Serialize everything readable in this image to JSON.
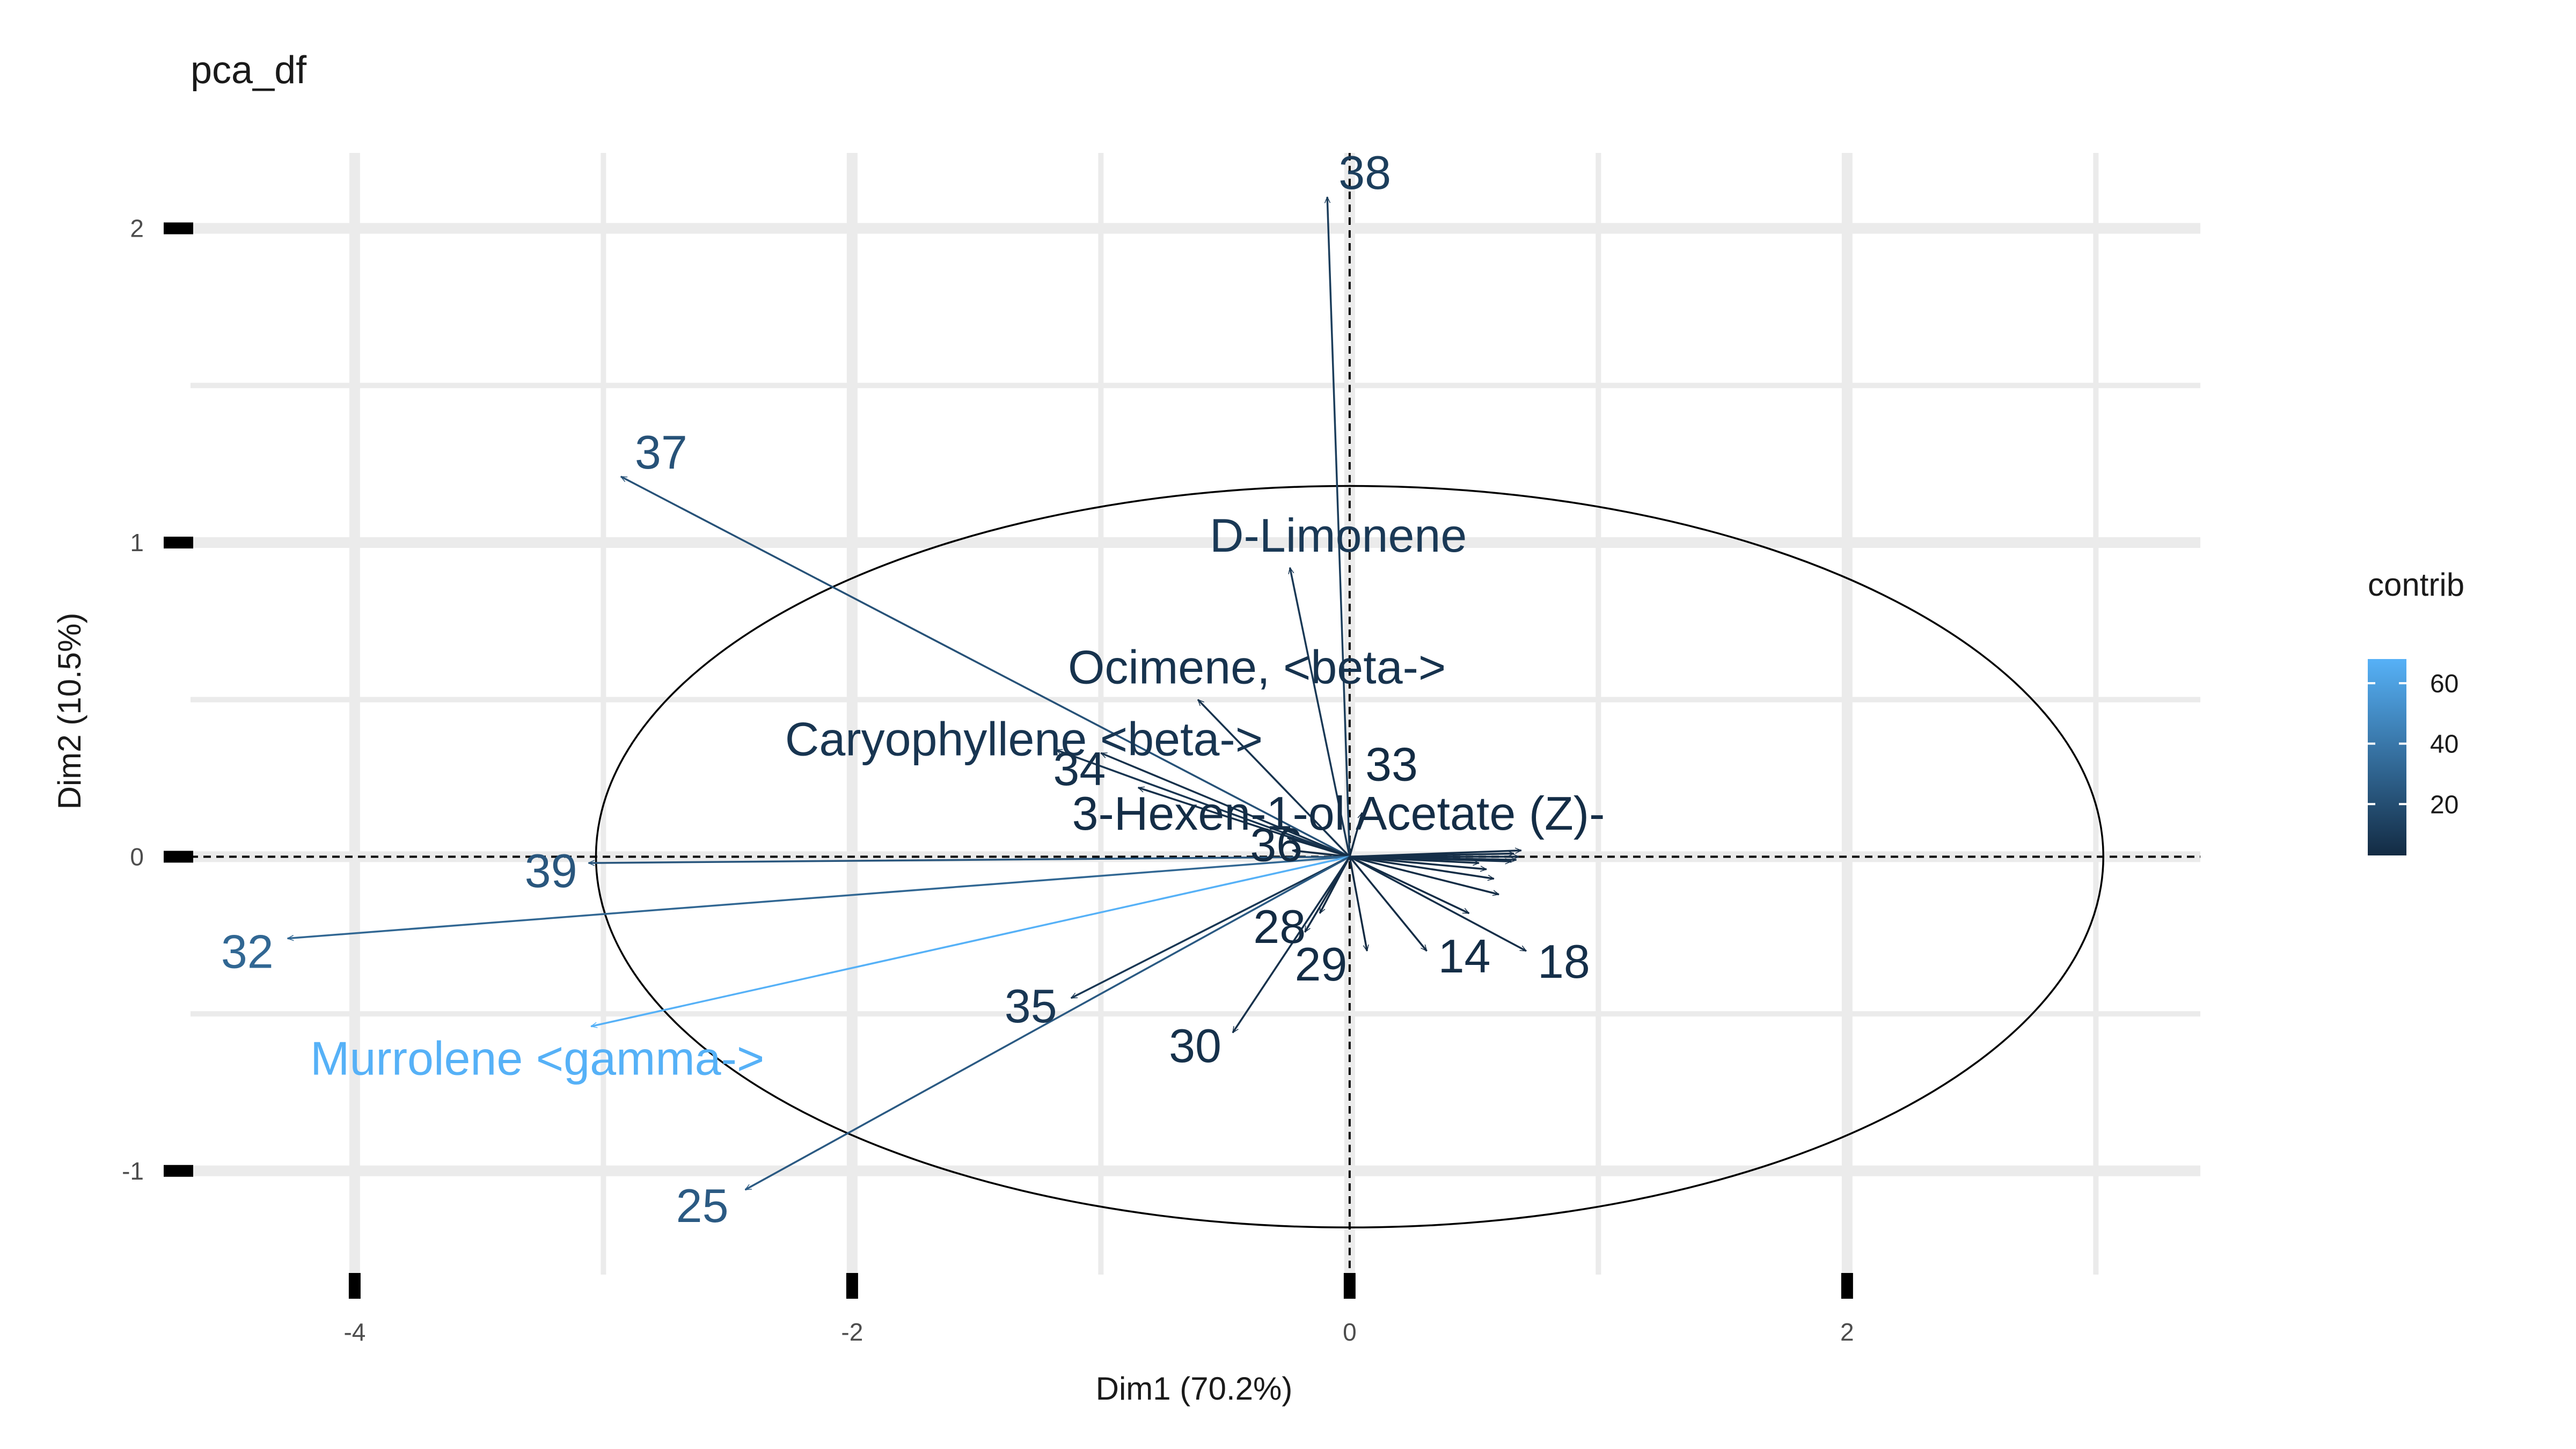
{
  "chart_data": {
    "type": "scatter",
    "subtype": "pca-variable-biplot",
    "title": "pca_df",
    "xlabel": "Dim1 (70.2%)",
    "ylabel": "Dim2 (10.5%)",
    "xlim": [
      -4.66,
      3.42
    ],
    "ylim": [
      -1.33,
      2.24
    ],
    "xticks": [
      -4,
      -2,
      0,
      2
    ],
    "xtick_labels": [
      "-4",
      "-2",
      "0",
      "2"
    ],
    "yticks": [
      -1,
      0,
      1,
      2
    ],
    "ytick_labels": [
      "-1",
      "0",
      "1",
      "2"
    ],
    "grid": true,
    "reference_lines": {
      "x": 0,
      "y": 0,
      "style": "dashed"
    },
    "correlation_circle": {
      "center": [
        0,
        0
      ],
      "radius_x": 3.03,
      "radius_y": 1.18
    },
    "legend": {
      "title": "contrib",
      "placement": "right",
      "range": [
        3,
        68
      ],
      "ticks": [
        20,
        40,
        60
      ],
      "tick_labels": [
        "20",
        "40",
        "60"
      ],
      "low_color": "#132B43",
      "high_color": "#56B1F7"
    },
    "variables": [
      {
        "label": "38",
        "x": -0.09,
        "y": 2.1,
        "contrib": 12
      },
      {
        "label": "37",
        "x": -2.93,
        "y": 1.21,
        "contrib": 22
      },
      {
        "label": "D-Limonene",
        "x": -0.24,
        "y": 0.92,
        "contrib": 10
      },
      {
        "label": "Ocimene, <beta->",
        "x": -0.61,
        "y": 0.5,
        "contrib": 7
      },
      {
        "label": "Caryophyllene <beta->",
        "x": -1.18,
        "y": 0.34,
        "contrib": 8
      },
      {
        "label": "34",
        "x": -1.0,
        "y": 0.33,
        "contrib": 6
      },
      {
        "label": "",
        "x": -0.85,
        "y": 0.22,
        "contrib": 5
      },
      {
        "label": "33",
        "x": 0.05,
        "y": 0.14,
        "contrib": 3
      },
      {
        "label": "3-Hexen-1-ol Acetate (Z)-",
        "x": -0.25,
        "y": 0.06,
        "contrib": 4
      },
      {
        "label": "36",
        "x": -0.23,
        "y": 0.02,
        "contrib": 3
      },
      {
        "label": "39",
        "x": -3.06,
        "y": -0.02,
        "contrib": 24
      },
      {
        "label": "32",
        "x": -4.27,
        "y": -0.26,
        "contrib": 32
      },
      {
        "label": "Murrolene <gamma->",
        "x": -3.05,
        "y": -0.54,
        "contrib": 68
      },
      {
        "label": "35",
        "x": -1.12,
        "y": -0.45,
        "contrib": 9
      },
      {
        "label": "25",
        "x": -2.43,
        "y": -1.06,
        "contrib": 26
      },
      {
        "label": "28",
        "x": -0.12,
        "y": -0.18,
        "contrib": 3
      },
      {
        "label": "29",
        "x": -0.18,
        "y": -0.24,
        "contrib": 4
      },
      {
        "label": "30",
        "x": -0.47,
        "y": -0.56,
        "contrib": 6
      },
      {
        "label": "",
        "x": 0.07,
        "y": -0.3,
        "contrib": 3
      },
      {
        "label": "14",
        "x": 0.31,
        "y": -0.3,
        "contrib": 4
      },
      {
        "label": "18",
        "x": 0.71,
        "y": -0.3,
        "contrib": 5
      },
      {
        "label": "",
        "x": 0.48,
        "y": -0.18,
        "contrib": 4
      },
      {
        "label": "",
        "x": 0.6,
        "y": -0.12,
        "contrib": 4
      },
      {
        "label": "",
        "x": 0.58,
        "y": -0.07,
        "contrib": 4
      },
      {
        "label": "",
        "x": 0.55,
        "y": -0.04,
        "contrib": 4
      },
      {
        "label": "",
        "x": 0.52,
        "y": -0.02,
        "contrib": 4
      },
      {
        "label": "",
        "x": 0.66,
        "y": 0.01,
        "contrib": 5
      },
      {
        "label": "",
        "x": 0.68,
        "y": 0.0,
        "contrib": 5
      },
      {
        "label": "",
        "x": 0.67,
        "y": -0.01,
        "contrib": 5
      },
      {
        "label": "",
        "x": 0.69,
        "y": 0.02,
        "contrib": 5
      },
      {
        "label": "",
        "x": 0.65,
        "y": -0.015,
        "contrib": 5
      }
    ]
  }
}
